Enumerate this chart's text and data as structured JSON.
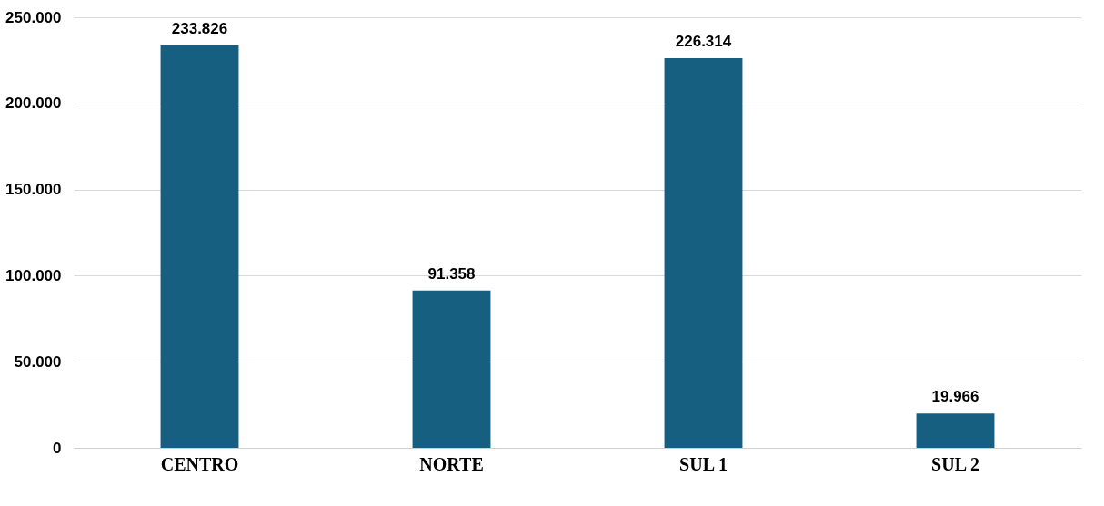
{
  "chart_data": {
    "type": "bar",
    "categories": [
      "CENTRO",
      "NORTE",
      "SUL 1",
      "SUL 2"
    ],
    "values": [
      233826,
      91358,
      226314,
      19966
    ],
    "value_labels": [
      "233.826",
      "91.358",
      "226.314",
      "19.966"
    ],
    "color": "#175f80",
    "ylim": [
      0,
      250000
    ],
    "yticks": [
      0,
      {
        "value": 50000,
        "label": "50.000"
      },
      {
        "value": 100000,
        "label": "100.000"
      },
      {
        "value": 150000,
        "label": "150.000"
      },
      {
        "value": 200000,
        "label": "200.000"
      },
      {
        "value": 250000,
        "label": "250.000"
      }
    ],
    "grid": "y"
  }
}
